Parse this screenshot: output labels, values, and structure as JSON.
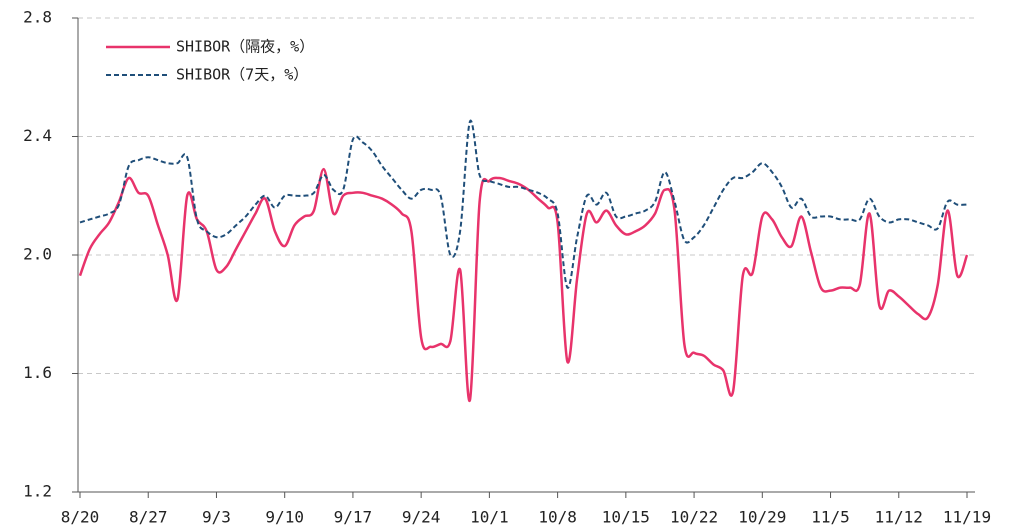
{
  "chart_data": {
    "type": "line",
    "categories": [
      "8/20",
      null,
      null,
      null,
      null,
      null,
      null,
      "8/27",
      null,
      null,
      null,
      null,
      null,
      null,
      "9/3",
      null,
      null,
      null,
      null,
      null,
      null,
      "9/10",
      null,
      null,
      null,
      null,
      null,
      null,
      "9/17",
      null,
      null,
      null,
      null,
      null,
      null,
      "9/24",
      null,
      null,
      null,
      null,
      null,
      null,
      "10/1",
      null,
      null,
      null,
      null,
      null,
      null,
      "10/8",
      null,
      null,
      null,
      null,
      null,
      null,
      "10/15",
      null,
      null,
      null,
      null,
      null,
      null,
      "10/22",
      null,
      null,
      null,
      null,
      null,
      null,
      "10/29",
      null,
      null,
      null,
      null,
      null,
      null,
      "11/5",
      null,
      null,
      null,
      null,
      null,
      null,
      "11/12",
      null,
      null,
      null,
      null,
      null,
      null,
      "11/19"
    ],
    "series": [
      {
        "name": "SHIBOR（隔夜，%）",
        "color": "#e8336b",
        "dash": false,
        "values": [
          1.93,
          2.02,
          2.07,
          2.11,
          2.18,
          2.26,
          2.21,
          2.2,
          2.1,
          2.0,
          1.85,
          2.2,
          2.12,
          2.08,
          1.95,
          1.96,
          2.02,
          2.08,
          2.14,
          2.19,
          2.08,
          2.03,
          2.1,
          2.13,
          2.15,
          2.29,
          2.14,
          2.2,
          2.21,
          2.21,
          2.2,
          2.19,
          2.17,
          2.14,
          2.08,
          1.72,
          1.69,
          1.7,
          1.71,
          1.95,
          1.51,
          2.18,
          2.25,
          2.26,
          2.25,
          2.24,
          2.22,
          2.19,
          2.16,
          2.11,
          1.64,
          1.92,
          2.14,
          2.11,
          2.15,
          2.1,
          2.07,
          2.08,
          2.1,
          2.14,
          2.22,
          2.15,
          1.7,
          1.67,
          1.66,
          1.63,
          1.61,
          1.54,
          1.93,
          1.94,
          2.13,
          2.12,
          2.06,
          2.03,
          2.13,
          2.01,
          1.89,
          1.88,
          1.89,
          1.89,
          1.9,
          2.14,
          1.83,
          1.88,
          1.86,
          1.83,
          1.8,
          1.79,
          1.9,
          2.15,
          1.93,
          2.0
        ]
      },
      {
        "name": "SHIBOR（7天，%）",
        "color": "#1f4e79",
        "dash": true,
        "values": [
          2.11,
          2.12,
          2.13,
          2.14,
          2.17,
          2.3,
          2.32,
          2.33,
          2.32,
          2.31,
          2.31,
          2.33,
          2.12,
          2.08,
          2.06,
          2.07,
          2.1,
          2.13,
          2.17,
          2.2,
          2.16,
          2.2,
          2.2,
          2.2,
          2.21,
          2.27,
          2.22,
          2.22,
          2.39,
          2.38,
          2.35,
          2.3,
          2.26,
          2.22,
          2.19,
          2.22,
          2.22,
          2.2,
          2.0,
          2.08,
          2.45,
          2.27,
          2.25,
          2.24,
          2.23,
          2.23,
          2.22,
          2.21,
          2.19,
          2.14,
          1.89,
          2.06,
          2.2,
          2.17,
          2.21,
          2.13,
          2.13,
          2.14,
          2.15,
          2.18,
          2.28,
          2.18,
          2.05,
          2.06,
          2.1,
          2.16,
          2.22,
          2.26,
          2.26,
          2.28,
          2.31,
          2.28,
          2.23,
          2.16,
          2.19,
          2.13,
          2.13,
          2.13,
          2.12,
          2.12,
          2.12,
          2.19,
          2.13,
          2.11,
          2.12,
          2.12,
          2.11,
          2.1,
          2.09,
          2.18,
          2.17,
          2.17
        ]
      }
    ],
    "ylim": [
      1.2,
      2.8
    ],
    "yticks": [
      1.2,
      1.6,
      {
        "value": 2,
        "label": "2.0"
      },
      2.4,
      2.8
    ],
    "grid": true,
    "legend": "top-left"
  }
}
